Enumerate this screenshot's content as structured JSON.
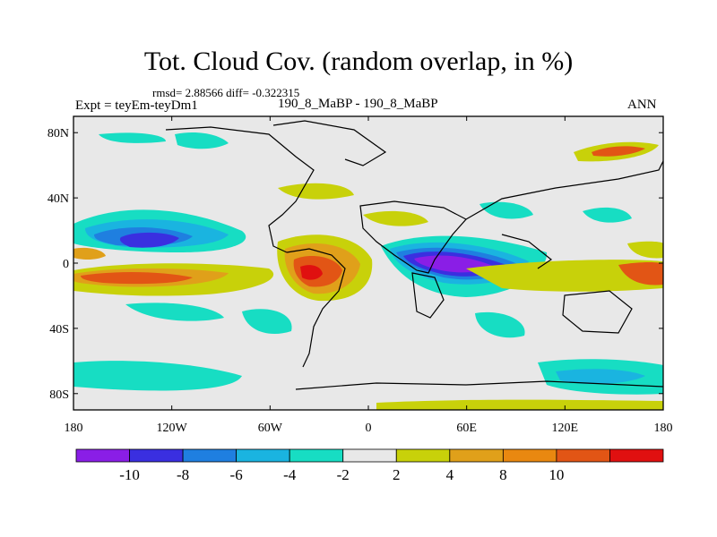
{
  "title": "Tot. Cloud Cov. (random overlap, in %)",
  "stats": "rmsd= 2.88566 diff= -0.322315",
  "expt": "Expt = teyEm-teyDm1",
  "cases": "190_8_MaBP - 190_8_MaBP",
  "season": "ANN",
  "map": {
    "lat_ticks": [
      {
        "value": 80,
        "label": "80N"
      },
      {
        "value": 40,
        "label": "40N"
      },
      {
        "value": 0,
        "label": "0"
      },
      {
        "value": -40,
        "label": "40S"
      },
      {
        "value": -80,
        "label": "80S"
      }
    ],
    "lon_ticks": [
      {
        "value": -180,
        "label": "180"
      },
      {
        "value": -120,
        "label": "120W"
      },
      {
        "value": -60,
        "label": "60W"
      },
      {
        "value": 0,
        "label": "0"
      },
      {
        "value": 60,
        "label": "60E"
      },
      {
        "value": 120,
        "label": "120E"
      },
      {
        "value": 180,
        "label": "180"
      }
    ],
    "background_color": "#e8e8e8"
  },
  "colorbar": {
    "colors": [
      "#8a1ee6",
      "#3a2fe0",
      "#1f7fe0",
      "#1ab4e0",
      "#17ddc3",
      "#e8e8e8",
      "#c8d10a",
      "#e0a01a",
      "#e98810",
      "#e25515",
      "#e01010"
    ],
    "labels": [
      "-10",
      "-8",
      "-6",
      "-4",
      "-2",
      "2",
      "4",
      "8",
      "10"
    ]
  }
}
